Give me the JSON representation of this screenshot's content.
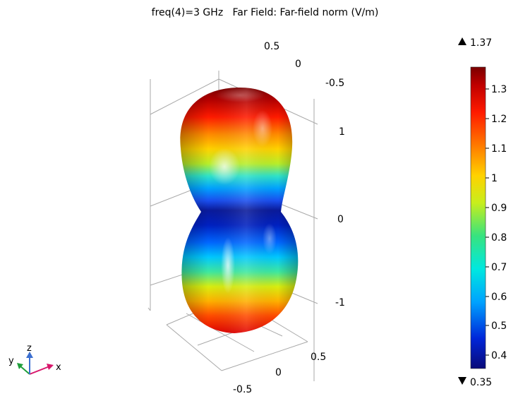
{
  "plot": {
    "title": "freq(4)=3 GHz   Far Field: Far-field norm (V/m)"
  },
  "axes": {
    "x_ticks": [
      "0.5",
      "0",
      "-0.5"
    ],
    "y_ticks": [
      "0.5",
      "0",
      "-0.5"
    ],
    "z_ticks": [
      "1",
      "0",
      "-1"
    ]
  },
  "colorbar": {
    "max_label": "1.37",
    "min_label": "0.35",
    "ticks": [
      "1.3",
      "1.2",
      "1.1",
      "1",
      "0.9",
      "0.8",
      "0.7",
      "0.6",
      "0.5",
      "0.4"
    ],
    "range": [
      0.35,
      1.37
    ],
    "colormap": [
      "#0a0a78",
      "#0026d9",
      "#00a2ff",
      "#00e8e0",
      "#37e37f",
      "#c8ee1c",
      "#ffd200",
      "#ff7a00",
      "#ff1a00",
      "#c00000",
      "#7a0000"
    ]
  },
  "triad": {
    "x_label": "x",
    "y_label": "y",
    "z_label": "z",
    "x_color": "#d8166b",
    "y_color": "#1e9e3a",
    "z_color": "#3b6fd0"
  }
}
